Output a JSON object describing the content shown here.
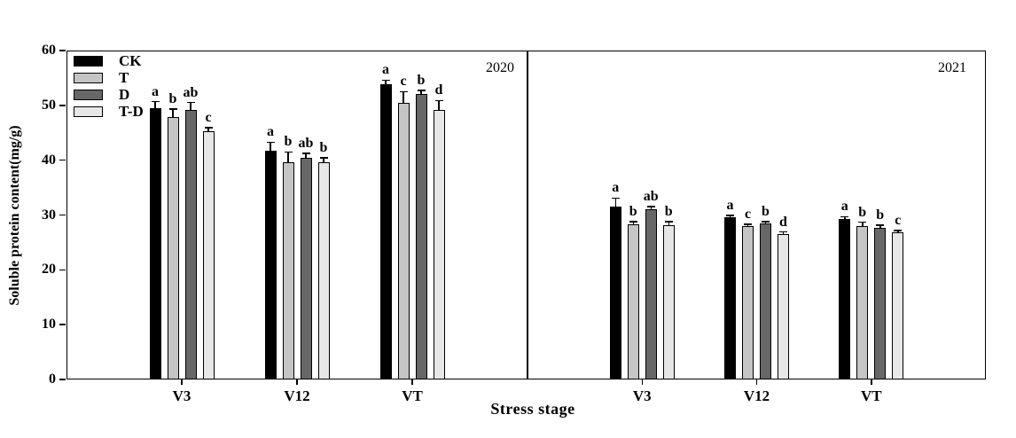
{
  "chart_data": {
    "type": "bar",
    "title": "",
    "ylabel": "Soluble protein content(mg/g)",
    "xlabel": "Stress stage",
    "ylim": [
      0,
      60
    ],
    "yticks": [
      0,
      10,
      20,
      30,
      40,
      50,
      60
    ],
    "categories": [
      "V3",
      "V12",
      "VT"
    ],
    "legend": [
      "CK",
      "T",
      "D",
      "T-D"
    ],
    "legend_position": "top-left",
    "grid": false,
    "error_bars": true,
    "colors": {
      "CK": "#000000",
      "T": "#c5c5c5",
      "D": "#676767",
      "T-D": "#e7e7e7"
    },
    "panels": [
      {
        "year": "2020",
        "series": [
          {
            "name": "CK",
            "values": [
              49.5,
              41.8,
              53.8
            ],
            "errors": [
              1.2,
              1.5,
              0.8
            ],
            "letters": [
              "a",
              "a",
              "a"
            ]
          },
          {
            "name": "T",
            "values": [
              47.8,
              39.7,
              50.5
            ],
            "errors": [
              1.5,
              1.8,
              2.0
            ],
            "letters": [
              "b",
              "b",
              "c"
            ]
          },
          {
            "name": "D",
            "values": [
              49.2,
              40.4,
              52.0
            ],
            "errors": [
              1.3,
              0.8,
              0.7
            ],
            "letters": [
              "ab",
              "ab",
              "b"
            ]
          },
          {
            "name": "T-D",
            "values": [
              45.3,
              39.6,
              49.1
            ],
            "errors": [
              0.6,
              0.8,
              1.8
            ],
            "letters": [
              "c",
              "b",
              "d"
            ]
          }
        ]
      },
      {
        "year": "2021",
        "series": [
          {
            "name": "CK",
            "values": [
              31.6,
              29.6,
              29.3
            ],
            "errors": [
              1.5,
              0.3,
              0.4
            ],
            "letters": [
              "a",
              "a",
              "a"
            ]
          },
          {
            "name": "T",
            "values": [
              28.3,
              27.9,
              27.9
            ],
            "errors": [
              0.5,
              0.4,
              0.8
            ],
            "letters": [
              "b",
              "c",
              "b"
            ]
          },
          {
            "name": "D",
            "values": [
              31.0,
              28.5,
              27.7
            ],
            "errors": [
              0.5,
              0.3,
              0.4
            ],
            "letters": [
              "ab",
              "b",
              "b"
            ]
          },
          {
            "name": "T-D",
            "values": [
              28.2,
              26.6,
              26.9
            ],
            "errors": [
              0.6,
              0.3,
              0.3
            ],
            "letters": [
              "b",
              "d",
              "c"
            ]
          }
        ]
      }
    ]
  }
}
